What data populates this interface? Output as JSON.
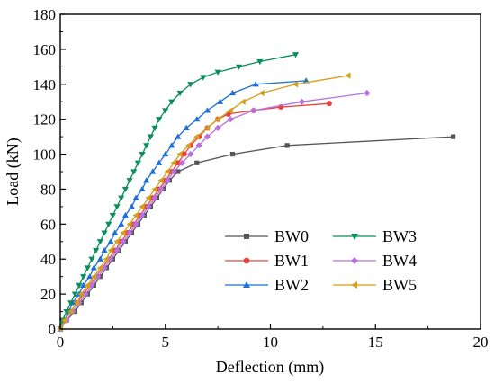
{
  "chart_data": {
    "type": "line",
    "title": "",
    "xlabel": "Deflection (mm)",
    "ylabel": "Load (kN)",
    "xlim": [
      0,
      20
    ],
    "ylim": [
      0,
      180
    ],
    "xticks": [
      "0",
      "5",
      "10",
      "15",
      "20"
    ],
    "yticks": [
      "0",
      "20",
      "40",
      "60",
      "80",
      "100",
      "120",
      "140",
      "160",
      "180"
    ],
    "grid": false,
    "legend_position": "bottom-right",
    "series": [
      {
        "name": "BW0",
        "color": "#555555",
        "marker": "square",
        "points": [
          [
            0,
            0
          ],
          [
            0.3,
            5
          ],
          [
            0.7,
            10
          ],
          [
            1.0,
            15
          ],
          [
            1.3,
            20
          ],
          [
            1.6,
            25
          ],
          [
            1.9,
            30
          ],
          [
            2.2,
            35
          ],
          [
            2.5,
            40
          ],
          [
            2.8,
            45
          ],
          [
            3.1,
            50
          ],
          [
            3.4,
            55
          ],
          [
            3.7,
            60
          ],
          [
            4.0,
            65
          ],
          [
            4.3,
            70
          ],
          [
            4.6,
            75
          ],
          [
            4.9,
            80
          ],
          [
            5.2,
            85
          ],
          [
            5.6,
            90
          ],
          [
            6.5,
            95
          ],
          [
            8.2,
            100
          ],
          [
            10.8,
            105
          ],
          [
            18.7,
            110
          ]
        ]
      },
      {
        "name": "BW1",
        "color": "#e8403a",
        "marker": "circle",
        "points": [
          [
            0,
            0
          ],
          [
            0.2,
            5
          ],
          [
            0.5,
            10
          ],
          [
            0.8,
            15
          ],
          [
            1.1,
            20
          ],
          [
            1.4,
            25
          ],
          [
            1.7,
            30
          ],
          [
            2.0,
            35
          ],
          [
            2.3,
            40
          ],
          [
            2.6,
            45
          ],
          [
            2.9,
            50
          ],
          [
            3.2,
            55
          ],
          [
            3.5,
            60
          ],
          [
            3.8,
            65
          ],
          [
            4.1,
            70
          ],
          [
            4.4,
            75
          ],
          [
            4.7,
            80
          ],
          [
            5.0,
            85
          ],
          [
            5.3,
            90
          ],
          [
            5.6,
            95
          ],
          [
            5.9,
            100
          ],
          [
            6.2,
            105
          ],
          [
            6.6,
            110
          ],
          [
            7.0,
            115
          ],
          [
            7.5,
            120
          ],
          [
            8.0,
            123
          ],
          [
            9.2,
            125
          ],
          [
            10.5,
            127
          ],
          [
            12.8,
            129
          ]
        ]
      },
      {
        "name": "BW2",
        "color": "#1f6fd6",
        "marker": "triangle-up",
        "points": [
          [
            0,
            0
          ],
          [
            0.2,
            5
          ],
          [
            0.4,
            10
          ],
          [
            0.6,
            15
          ],
          [
            0.9,
            20
          ],
          [
            1.1,
            25
          ],
          [
            1.4,
            30
          ],
          [
            1.6,
            35
          ],
          [
            1.9,
            40
          ],
          [
            2.1,
            45
          ],
          [
            2.4,
            50
          ],
          [
            2.6,
            55
          ],
          [
            2.9,
            60
          ],
          [
            3.1,
            65
          ],
          [
            3.4,
            70
          ],
          [
            3.6,
            75
          ],
          [
            3.9,
            80
          ],
          [
            4.1,
            85
          ],
          [
            4.4,
            90
          ],
          [
            4.7,
            95
          ],
          [
            5.0,
            100
          ],
          [
            5.3,
            105
          ],
          [
            5.6,
            110
          ],
          [
            6.0,
            115
          ],
          [
            6.5,
            120
          ],
          [
            7.0,
            125
          ],
          [
            7.6,
            130
          ],
          [
            8.2,
            135
          ],
          [
            9.3,
            140
          ],
          [
            11.7,
            142
          ]
        ]
      },
      {
        "name": "BW3",
        "color": "#0b8f5a",
        "marker": "triangle-down",
        "points": [
          [
            0,
            0
          ],
          [
            0.1,
            5
          ],
          [
            0.3,
            10
          ],
          [
            0.5,
            15
          ],
          [
            0.7,
            20
          ],
          [
            0.9,
            25
          ],
          [
            1.1,
            30
          ],
          [
            1.3,
            35
          ],
          [
            1.5,
            40
          ],
          [
            1.7,
            45
          ],
          [
            1.9,
            50
          ],
          [
            2.1,
            55
          ],
          [
            2.3,
            60
          ],
          [
            2.5,
            65
          ],
          [
            2.7,
            70
          ],
          [
            2.9,
            75
          ],
          [
            3.1,
            80
          ],
          [
            3.3,
            85
          ],
          [
            3.5,
            90
          ],
          [
            3.7,
            95
          ],
          [
            3.9,
            100
          ],
          [
            4.1,
            105
          ],
          [
            4.3,
            110
          ],
          [
            4.5,
            115
          ],
          [
            4.7,
            120
          ],
          [
            5.0,
            125
          ],
          [
            5.3,
            130
          ],
          [
            5.7,
            135
          ],
          [
            6.2,
            140
          ],
          [
            6.8,
            144
          ],
          [
            7.5,
            147
          ],
          [
            8.5,
            150
          ],
          [
            9.5,
            153
          ],
          [
            11.2,
            157
          ]
        ]
      },
      {
        "name": "BW4",
        "color": "#b86fe0",
        "marker": "diamond",
        "points": [
          [
            0,
            0
          ],
          [
            0.3,
            5
          ],
          [
            0.6,
            10
          ],
          [
            0.9,
            15
          ],
          [
            1.2,
            20
          ],
          [
            1.5,
            25
          ],
          [
            1.8,
            30
          ],
          [
            2.1,
            35
          ],
          [
            2.4,
            40
          ],
          [
            2.7,
            45
          ],
          [
            3.0,
            50
          ],
          [
            3.3,
            55
          ],
          [
            3.6,
            60
          ],
          [
            3.9,
            65
          ],
          [
            4.2,
            70
          ],
          [
            4.5,
            75
          ],
          [
            4.8,
            80
          ],
          [
            5.1,
            85
          ],
          [
            5.4,
            90
          ],
          [
            5.8,
            95
          ],
          [
            6.2,
            100
          ],
          [
            6.6,
            105
          ],
          [
            7.0,
            110
          ],
          [
            7.5,
            115
          ],
          [
            8.1,
            120
          ],
          [
            9.2,
            125
          ],
          [
            11.5,
            130
          ],
          [
            14.6,
            135
          ]
        ]
      },
      {
        "name": "BW5",
        "color": "#d4a017",
        "marker": "triangle-left",
        "points": [
          [
            0,
            0
          ],
          [
            0.2,
            5
          ],
          [
            0.5,
            10
          ],
          [
            0.8,
            15
          ],
          [
            1.0,
            20
          ],
          [
            1.3,
            25
          ],
          [
            1.6,
            30
          ],
          [
            1.9,
            35
          ],
          [
            2.2,
            40
          ],
          [
            2.4,
            45
          ],
          [
            2.7,
            50
          ],
          [
            3.0,
            55
          ],
          [
            3.3,
            60
          ],
          [
            3.6,
            65
          ],
          [
            3.9,
            70
          ],
          [
            4.2,
            75
          ],
          [
            4.5,
            80
          ],
          [
            4.8,
            85
          ],
          [
            5.1,
            90
          ],
          [
            5.4,
            95
          ],
          [
            5.7,
            100
          ],
          [
            6.1,
            105
          ],
          [
            6.5,
            110
          ],
          [
            7.0,
            115
          ],
          [
            7.5,
            120
          ],
          [
            8.1,
            125
          ],
          [
            8.7,
            130
          ],
          [
            9.6,
            135
          ],
          [
            11.2,
            140
          ],
          [
            13.7,
            145
          ]
        ]
      }
    ]
  }
}
